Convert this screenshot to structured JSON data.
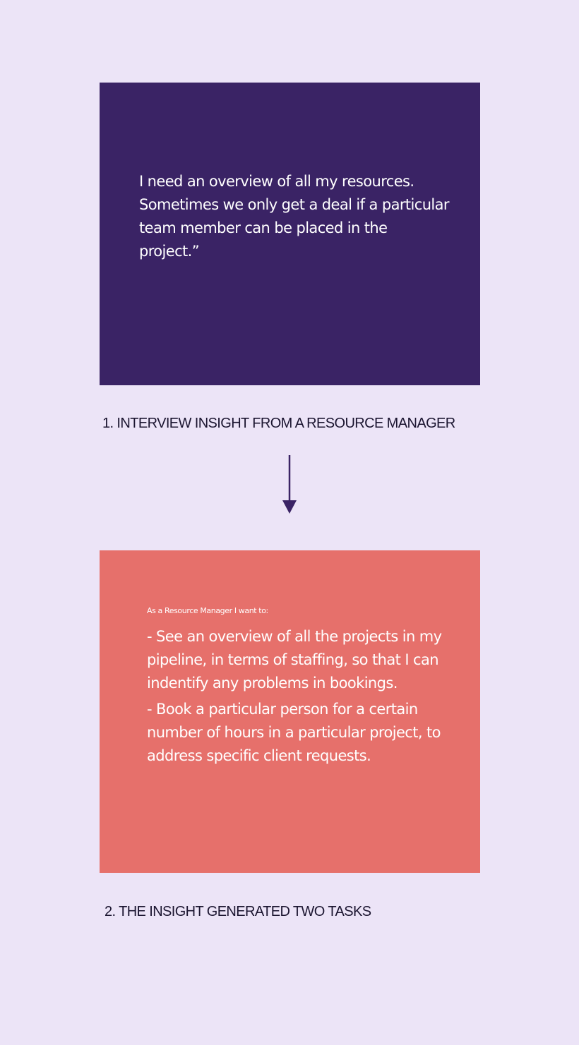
{
  "insight": {
    "quote": "I need an overview of all my resources. Sometimes we only get a deal if a particular team member can be placed in the project.”",
    "caption": "1. INTERVIEW INSIGHT FROM A RESOURCE MANAGER"
  },
  "tasks": {
    "intro": "As a Resource Manager I want to:",
    "items": [
      "- See an overview of all the projects in my pipeline, in terms of staffing, so that I can indentify any problems in bookings.",
      "- Book a particular person for a certain number of hours in a particular project, to address specific client requests."
    ],
    "caption": "2. THE INSIGHT GENERATED TWO TASKS"
  },
  "colors": {
    "background": "#ece4f7",
    "insight_card": "#3a2365",
    "tasks_card": "#e6706b",
    "arrow": "#3a2365",
    "caption_text": "#1b1530"
  },
  "icons": {
    "arrow": "arrow-down-icon"
  }
}
